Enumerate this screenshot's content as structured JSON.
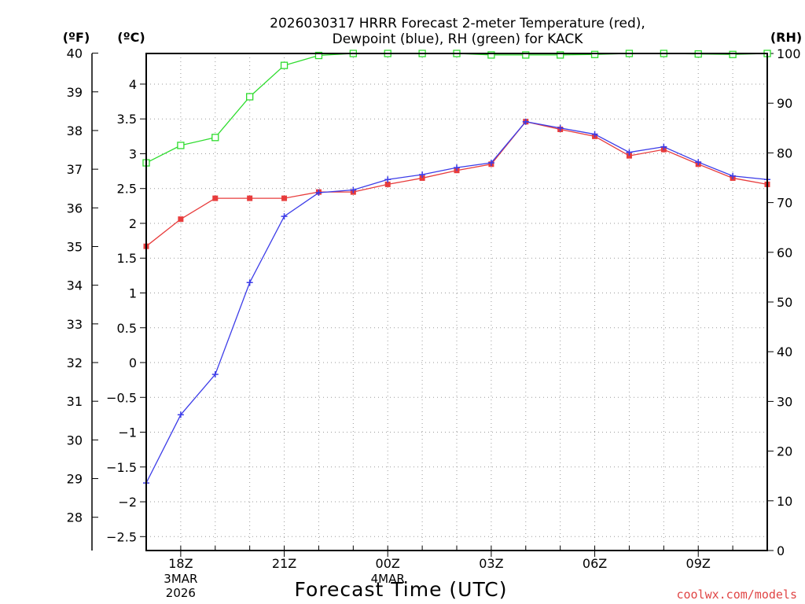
{
  "chart_data": {
    "type": "line",
    "title_line1": "2026030317 HRRR Forecast 2-meter Temperature (red),",
    "title_line2": "Dewpoint (blue), RH (green) for KACK",
    "xlabel": "Forecast Time (UTC)",
    "credit": "coolwx.com/models",
    "units": {
      "f": "(ºF)",
      "c": "(ºC)",
      "rh": "(RH)"
    },
    "x_hours": [
      17,
      18,
      19,
      20,
      21,
      22,
      23,
      24,
      25,
      26,
      27,
      28,
      29,
      30,
      31,
      32,
      33,
      34,
      35
    ],
    "xlim": [
      17,
      35
    ],
    "x_ticks": [
      {
        "hour": 18,
        "label": "18Z"
      },
      {
        "hour": 21,
        "label": "21Z"
      },
      {
        "hour": 24,
        "label": "00Z"
      },
      {
        "hour": 27,
        "label": "03Z"
      },
      {
        "hour": 30,
        "label": "06Z"
      },
      {
        "hour": 33,
        "label": "09Z"
      }
    ],
    "date_labels": [
      {
        "hour": 18,
        "lines": [
          "3MAR",
          "2026"
        ]
      },
      {
        "hour": 24,
        "lines": [
          "4MAR"
        ]
      }
    ],
    "left_axis_c": {
      "ylim": [
        -2.7,
        4.44
      ],
      "ticks": [
        -2.5,
        -2,
        -1.5,
        -1,
        -0.5,
        0,
        0.5,
        1,
        1.5,
        2,
        2.5,
        3,
        3.5,
        4
      ],
      "tick_labels": [
        "−2.5",
        "−2",
        "−1.5",
        "−1",
        "−0.5",
        "0",
        "0.5",
        "1",
        "1.5",
        "2",
        "2.5",
        "3",
        "3.5",
        "4"
      ]
    },
    "outer_axis_f": {
      "ticks": [
        28,
        29,
        30,
        31,
        32,
        33,
        34,
        35,
        36,
        37,
        38,
        39,
        40
      ],
      "tick_labels": [
        "28",
        "29",
        "30",
        "31",
        "32",
        "33",
        "34",
        "35",
        "36",
        "37",
        "38",
        "39",
        "40"
      ]
    },
    "right_axis_rh": {
      "ylim": [
        0,
        100
      ],
      "ticks": [
        0,
        10,
        20,
        30,
        40,
        50,
        60,
        70,
        80,
        90,
        100
      ],
      "tick_labels": [
        "0",
        "10",
        "20",
        "30",
        "40",
        "50",
        "60",
        "70",
        "80",
        "90",
        "100"
      ]
    },
    "grid": true,
    "series": [
      {
        "name": "Temperature",
        "color": "#e83c3c",
        "marker": "filled-square",
        "units": "degC",
        "values": [
          1.67,
          2.06,
          2.36,
          2.36,
          2.36,
          2.45,
          2.45,
          2.56,
          2.65,
          2.76,
          2.85,
          3.46,
          3.35,
          3.25,
          2.97,
          3.06,
          2.85,
          2.65,
          2.56
        ]
      },
      {
        "name": "Dewpoint",
        "color": "#3c3ce8",
        "marker": "plus",
        "units": "degC",
        "values": [
          -1.73,
          -0.75,
          -0.17,
          1.15,
          2.1,
          2.44,
          2.48,
          2.63,
          2.7,
          2.8,
          2.87,
          3.46,
          3.37,
          3.28,
          3.02,
          3.1,
          2.88,
          2.68,
          2.63
        ]
      },
      {
        "name": "RH",
        "color": "#2edc2e",
        "marker": "open-square",
        "units": "percent",
        "values": [
          78.0,
          81.5,
          83.1,
          91.3,
          97.6,
          99.6,
          100,
          100,
          100,
          100,
          99.7,
          99.7,
          99.7,
          99.8,
          100,
          100,
          99.9,
          99.8,
          100
        ]
      }
    ]
  }
}
